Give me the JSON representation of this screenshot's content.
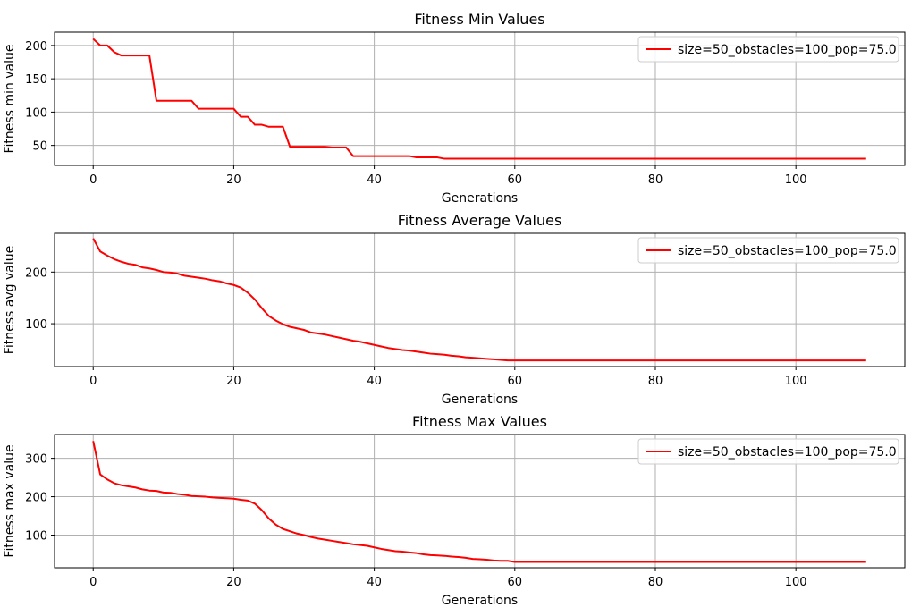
{
  "chart_data": [
    {
      "type": "line",
      "title": "Fitness Min Values",
      "xlabel": "Generations",
      "ylabel": "Fitness min value",
      "xlim": [
        -5.5,
        115.5
      ],
      "ylim": [
        20,
        220
      ],
      "xticks": [
        0,
        20,
        40,
        60,
        80,
        100
      ],
      "yticks": [
        50,
        100,
        150,
        200
      ],
      "grid": true,
      "legend_position": "upper right",
      "series": [
        {
          "name": "size=50_obstacles=100_pop=75.0",
          "color": "#ff0000",
          "x": [
            0,
            1,
            2,
            3,
            4,
            5,
            6,
            7,
            8,
            9,
            10,
            11,
            12,
            13,
            14,
            15,
            16,
            17,
            18,
            19,
            20,
            21,
            22,
            23,
            24,
            25,
            26,
            27,
            28,
            29,
            30,
            31,
            32,
            33,
            34,
            35,
            36,
            37,
            38,
            39,
            40,
            41,
            42,
            43,
            44,
            45,
            46,
            47,
            48,
            49,
            50,
            51,
            52,
            53,
            54,
            55,
            56,
            57,
            58,
            59,
            60,
            61,
            62,
            63,
            64,
            65,
            66,
            67,
            68,
            69,
            70,
            71,
            72,
            73,
            74,
            75,
            76,
            77,
            78,
            79,
            80,
            81,
            82,
            83,
            84,
            85,
            86,
            87,
            88,
            89,
            90,
            91,
            92,
            93,
            94,
            95,
            96,
            97,
            98,
            99,
            100,
            101,
            102,
            103,
            104,
            105,
            106,
            107,
            108,
            109,
            110
          ],
          "y": [
            210,
            200,
            200,
            190,
            185,
            185,
            185,
            185,
            185,
            117,
            117,
            117,
            117,
            117,
            117,
            105,
            105,
            105,
            105,
            105,
            105,
            93,
            93,
            81,
            81,
            78,
            78,
            78,
            48,
            48,
            48,
            48,
            48,
            48,
            47,
            47,
            47,
            34,
            34,
            34,
            34,
            34,
            34,
            34,
            34,
            34,
            32,
            32,
            32,
            32,
            30,
            30,
            30,
            30,
            30,
            30,
            30,
            30,
            30,
            30,
            30,
            30,
            30,
            30,
            30,
            30,
            30,
            30,
            30,
            30,
            30,
            30,
            30,
            30,
            30,
            30,
            30,
            30,
            30,
            30,
            30,
            30,
            30,
            30,
            30,
            30,
            30,
            30,
            30,
            30,
            30,
            30,
            30,
            30,
            30,
            30,
            30,
            30,
            30,
            30,
            30,
            30,
            30,
            30,
            30,
            30,
            30,
            30,
            30,
            30,
            30
          ]
        }
      ]
    },
    {
      "type": "line",
      "title": "Fitness Average Values",
      "xlabel": "Generations",
      "ylabel": "Fitness avg value",
      "xlim": [
        -5.5,
        115.5
      ],
      "ylim": [
        17,
        275
      ],
      "xticks": [
        0,
        20,
        40,
        60,
        80,
        100
      ],
      "yticks": [
        100,
        200
      ],
      "grid": true,
      "legend_position": "upper right",
      "series": [
        {
          "name": "size=50_obstacles=100_pop=75.0",
          "color": "#ff0000",
          "x": [
            0,
            1,
            2,
            3,
            4,
            5,
            6,
            7,
            8,
            9,
            10,
            11,
            12,
            13,
            14,
            15,
            16,
            17,
            18,
            19,
            20,
            21,
            22,
            23,
            24,
            25,
            26,
            27,
            28,
            29,
            30,
            31,
            32,
            33,
            34,
            35,
            36,
            37,
            38,
            39,
            40,
            41,
            42,
            43,
            44,
            45,
            46,
            47,
            48,
            49,
            50,
            51,
            52,
            53,
            54,
            55,
            56,
            57,
            58,
            59,
            60,
            61,
            62,
            63,
            64,
            65,
            66,
            67,
            68,
            69,
            70,
            71,
            72,
            73,
            74,
            75,
            76,
            77,
            78,
            79,
            80,
            81,
            82,
            83,
            84,
            85,
            86,
            87,
            88,
            89,
            90,
            91,
            92,
            93,
            94,
            95,
            96,
            97,
            98,
            99,
            100,
            101,
            102,
            103,
            104,
            105,
            106,
            107,
            108,
            109,
            110
          ],
          "y": [
            265,
            240,
            232,
            225,
            220,
            216,
            214,
            209,
            207,
            204,
            200,
            199,
            197,
            193,
            191,
            189,
            187,
            184,
            182,
            178,
            175,
            170,
            160,
            147,
            130,
            115,
            106,
            99,
            94,
            91,
            88,
            83,
            81,
            79,
            76,
            73,
            70,
            67,
            65,
            62,
            59,
            56,
            53,
            51,
            49,
            48,
            46,
            44,
            42,
            41,
            40,
            38,
            37,
            35,
            34,
            33,
            32,
            31,
            30,
            29,
            29,
            29,
            29,
            29,
            29,
            29,
            29,
            29,
            29,
            29,
            29,
            29,
            29,
            29,
            29,
            29,
            29,
            29,
            29,
            29,
            29,
            29,
            29,
            29,
            29,
            29,
            29,
            29,
            29,
            29,
            29,
            29,
            29,
            29,
            29,
            29,
            29,
            29,
            29,
            29,
            29,
            29,
            29,
            29,
            29,
            29,
            29,
            29,
            29,
            29,
            29
          ]
        }
      ]
    },
    {
      "type": "line",
      "title": "Fitness Max Values",
      "xlabel": "Generations",
      "ylabel": "Fitness max value",
      "xlim": [
        -5.5,
        115.5
      ],
      "ylim": [
        15,
        362
      ],
      "xticks": [
        0,
        20,
        40,
        60,
        80,
        100
      ],
      "yticks": [
        100,
        200,
        300
      ],
      "grid": true,
      "legend_position": "upper right",
      "series": [
        {
          "name": "size=50_obstacles=100_pop=75.0",
          "color": "#ff0000",
          "x": [
            0,
            1,
            2,
            3,
            4,
            5,
            6,
            7,
            8,
            9,
            10,
            11,
            12,
            13,
            14,
            15,
            16,
            17,
            18,
            19,
            20,
            21,
            22,
            23,
            24,
            25,
            26,
            27,
            28,
            29,
            30,
            31,
            32,
            33,
            34,
            35,
            36,
            37,
            38,
            39,
            40,
            41,
            42,
            43,
            44,
            45,
            46,
            47,
            48,
            49,
            50,
            51,
            52,
            53,
            54,
            55,
            56,
            57,
            58,
            59,
            60,
            61,
            62,
            63,
            64,
            65,
            66,
            67,
            68,
            69,
            70,
            71,
            72,
            73,
            74,
            75,
            76,
            77,
            78,
            79,
            80,
            81,
            82,
            83,
            84,
            85,
            86,
            87,
            88,
            89,
            90,
            91,
            92,
            93,
            94,
            95,
            96,
            97,
            98,
            99,
            100,
            101,
            102,
            103,
            104,
            105,
            106,
            107,
            108,
            109,
            110
          ],
          "y": [
            345,
            258,
            245,
            235,
            230,
            227,
            224,
            219,
            216,
            215,
            211,
            210,
            207,
            205,
            202,
            201,
            200,
            198,
            197,
            196,
            195,
            192,
            190,
            182,
            165,
            143,
            127,
            116,
            110,
            104,
            100,
            95,
            91,
            88,
            85,
            82,
            79,
            76,
            74,
            72,
            68,
            64,
            61,
            58,
            57,
            55,
            53,
            50,
            48,
            47,
            46,
            44,
            43,
            41,
            38,
            37,
            36,
            34,
            33,
            33,
            30,
            30,
            30,
            30,
            30,
            30,
            30,
            30,
            30,
            30,
            30,
            30,
            30,
            30,
            30,
            30,
            30,
            30,
            30,
            30,
            30,
            30,
            30,
            30,
            30,
            30,
            30,
            30,
            30,
            30,
            30,
            30,
            30,
            30,
            30,
            30,
            30,
            30,
            30,
            30,
            30,
            30,
            30,
            30,
            30,
            30,
            30,
            30,
            30,
            30,
            30
          ]
        }
      ]
    }
  ]
}
